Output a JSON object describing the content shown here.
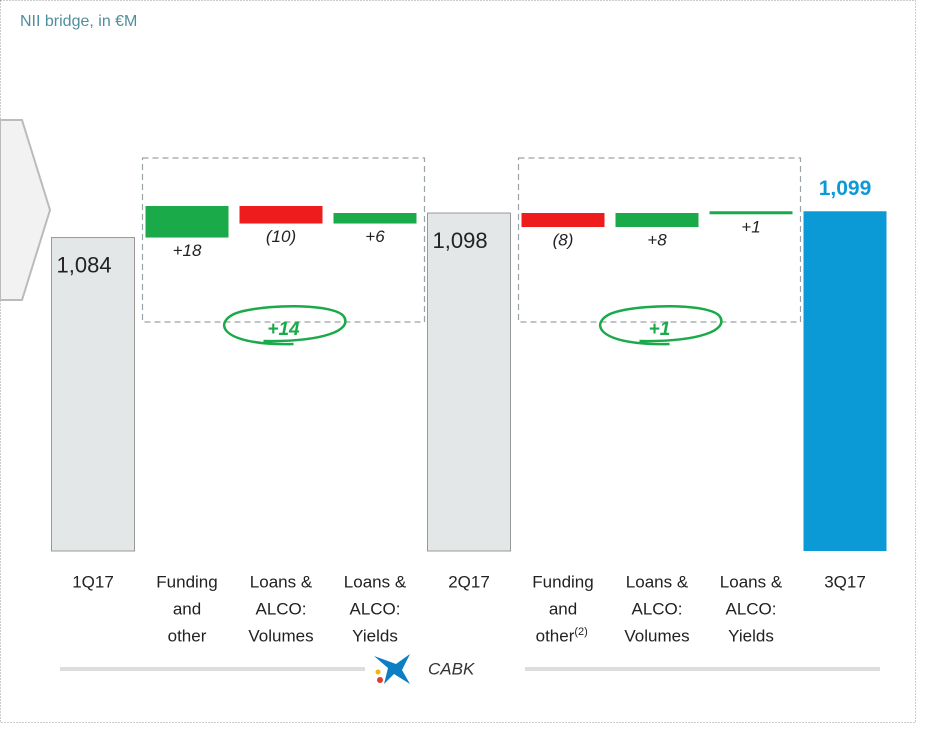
{
  "chart_data": {
    "type": "waterfall",
    "title": "NII bridge, in €M",
    "categories": [
      {
        "lines": [
          "1Q17"
        ]
      },
      {
        "lines": [
          "Funding",
          "and",
          "other"
        ]
      },
      {
        "lines": [
          "Loans &",
          "ALCO:",
          "Volumes"
        ]
      },
      {
        "lines": [
          "Loans &",
          "ALCO:",
          "Yields"
        ]
      },
      {
        "lines": [
          "2Q17"
        ]
      },
      {
        "lines": [
          "Funding",
          "and",
          "other"
        ],
        "note": "(2)"
      },
      {
        "lines": [
          "Loans &",
          "ALCO:",
          "Volumes"
        ]
      },
      {
        "lines": [
          "Loans &",
          "ALCO:",
          "Yields"
        ]
      },
      {
        "lines": [
          "3Q17"
        ]
      }
    ],
    "measure": [
      "absolute",
      "relative",
      "relative",
      "relative",
      "absolute",
      "relative",
      "relative",
      "relative",
      "absolute"
    ],
    "values": [
      1084,
      18,
      -10,
      6,
      1098,
      -8,
      8,
      1,
      1099
    ],
    "value_labels": [
      "1,084",
      "+18",
      "(10)",
      "+6",
      "1,098",
      "(8)",
      "+8",
      "+1",
      "1,099"
    ],
    "colors": [
      "#e3e7e7",
      "#1aaa4a",
      "#ee1c1c",
      "#1aaa4a",
      "#e3e7e7",
      "#ee1c1c",
      "#1aaa4a",
      "#1aaa4a",
      "#0c9ad6"
    ],
    "group_totals": [
      {
        "value": 14,
        "label": "+14"
      },
      {
        "value": 1,
        "label": "+1"
      }
    ],
    "ylim": [
      905,
      1110
    ],
    "footer": "CABK"
  }
}
